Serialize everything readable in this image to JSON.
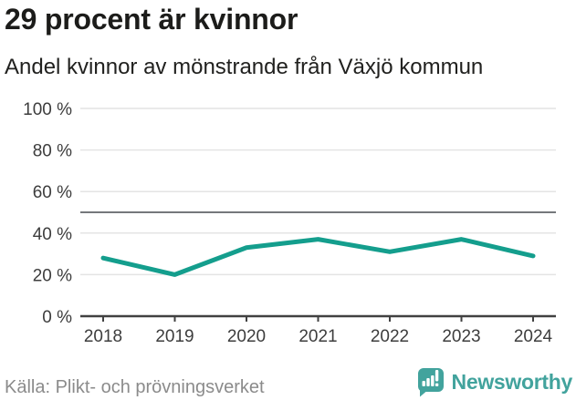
{
  "header": {
    "title": "29 procent är kvinnor",
    "subtitle": "Andel kvinnor av mönstrande från Växjö kommun"
  },
  "chart_data": {
    "type": "line",
    "x": [
      2018,
      2019,
      2020,
      2021,
      2022,
      2023,
      2024
    ],
    "x_labels": [
      "2018",
      "2019",
      "2020",
      "2021",
      "2022",
      "2023",
      "2024"
    ],
    "series": [
      {
        "name": "Andel kvinnor av mönstrande",
        "values": [
          28,
          20,
          33,
          37,
          31,
          37,
          29
        ]
      }
    ],
    "unit": "%",
    "ylim": [
      0,
      100
    ],
    "yticks": [
      0,
      20,
      40,
      60,
      80,
      100
    ],
    "ytick_labels": [
      "0 %",
      "20 %",
      "40 %",
      "60 %",
      "80 %",
      "100 %"
    ],
    "reference_line_value": 50,
    "grid": true,
    "legend": "none",
    "colors": {
      "line": "#149e8d",
      "grid": "#e4e4e4",
      "reference_line": "#75787b",
      "axis": "#414141",
      "tick_label": "#3d3d3d"
    }
  },
  "footer": {
    "source": "Källa: Plikt- och prövningsverket",
    "brand": "Newsworthy",
    "brand_color": "#42a39d",
    "brand_icon": "newsworthy-speech-bubble-bar-chart"
  }
}
